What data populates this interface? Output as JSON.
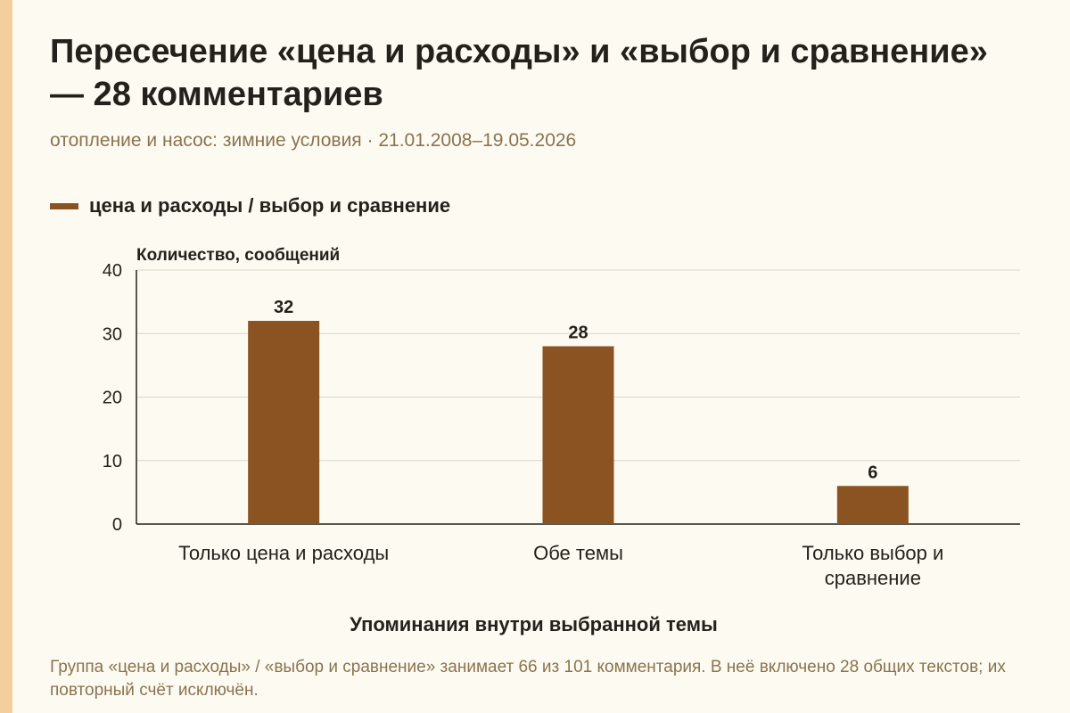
{
  "header": {
    "title": "Пересечение «цена и расходы» и «выбор и сравнение» — 28 комментариев",
    "subtitle": "отопление и насос: зимние условия · 21.01.2008–19.05.2026"
  },
  "legend": {
    "label": "цена и расходы / выбор и сравнение"
  },
  "note": "Группа «цена и расходы» / «выбор и сравнение» занимает 66 из 101 комментария. В неё включено 28 общих текстов; их повторный счёт исключён.",
  "colors": {
    "bar": "#8b5222",
    "grid": "#d9d6cc",
    "axis": "#24211c",
    "background": "#fdfbf1"
  },
  "chart_data": {
    "type": "bar",
    "categories": [
      "Только цена и расходы",
      "Обе темы",
      "Только выбор и сравнение"
    ],
    "category_lines": [
      [
        "Только цена и расходы"
      ],
      [
        "Обе темы"
      ],
      [
        "Только выбор и",
        "сравнение"
      ]
    ],
    "series": [
      {
        "name": "цена и расходы / выбор и сравнение",
        "values": [
          32,
          28,
          6
        ]
      }
    ],
    "ylabel": "Количество, сообщений",
    "xlabel": "Упоминания внутри выбранной темы",
    "ylim": [
      0,
      40
    ],
    "yticks": [
      0,
      10,
      20,
      30,
      40
    ],
    "grid": true,
    "legend_position": "top-left"
  }
}
